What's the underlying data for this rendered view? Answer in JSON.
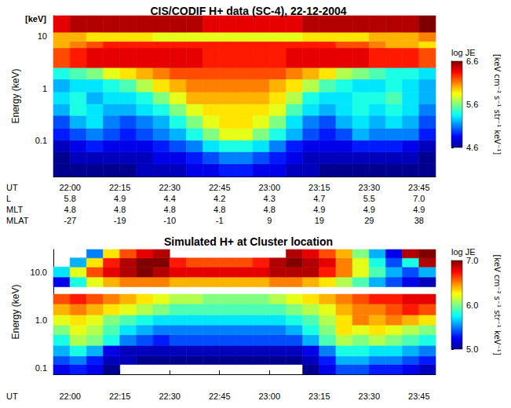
{
  "chart_data": [
    {
      "type": "heatmap",
      "title": "CIS/CODIF H+ data (SC-4), 22-12-2004",
      "ylabel": "Energy (keV)",
      "annotation": "[keV]",
      "xlabel": "UT",
      "log": "y",
      "xlim": [
        1315,
        1430
      ],
      "xticks": [
        {
          "value": 1320,
          "label": "22:00"
        },
        {
          "value": 1335,
          "label": "22:15"
        },
        {
          "value": 1350,
          "label": "22:30"
        },
        {
          "value": 1365,
          "label": "22:45"
        },
        {
          "value": 1380,
          "label": "23:00"
        },
        {
          "value": 1395,
          "label": "23:15"
        },
        {
          "value": 1410,
          "label": "23:30"
        },
        {
          "value": 1425,
          "label": "23:45"
        }
      ],
      "ylim": [
        0.02,
        25
      ],
      "yticks": [
        0.1,
        1,
        10
      ],
      "rows": [
        {
          "label": "L",
          "values": [
            "5.8",
            "4.9",
            "4.4",
            "4.2",
            "4.3",
            "4.7",
            "5.5",
            "7.0"
          ]
        },
        {
          "label": "MLT",
          "values": [
            "4.8",
            "4.8",
            "4.8",
            "4.8",
            "4.8",
            "4.9",
            "4.9",
            "4.9"
          ]
        },
        {
          "label": "MLAT",
          "values": [
            "-27",
            "-19",
            "-10",
            "-1",
            "9",
            "19",
            "29",
            "38"
          ]
        }
      ],
      "x_edges": [
        1315,
        1320,
        1325,
        1330,
        1335,
        1340,
        1345,
        1350,
        1355,
        1360,
        1365,
        1370,
        1375,
        1380,
        1385,
        1390,
        1395,
        1400,
        1405,
        1410,
        1415,
        1420,
        1425,
        1430
      ],
      "y_edges": [
        0.02,
        0.035,
        0.06,
        0.1,
        0.17,
        0.3,
        0.5,
        0.85,
        1.5,
        2.5,
        6,
        8,
        12,
        25
      ],
      "cells": [
        [
          4.6,
          4.6,
          4.6,
          4.6,
          4.6,
          4.7,
          4.7,
          4.7,
          4.8,
          4.8,
          4.9,
          4.9,
          4.8,
          4.8,
          4.7,
          4.7,
          4.6,
          4.6,
          4.6,
          4.6,
          4.6,
          4.6,
          4.6
        ],
        [
          4.6,
          4.7,
          4.7,
          4.7,
          4.7,
          4.7,
          4.8,
          4.8,
          4.9,
          5.0,
          5.1,
          5.1,
          5.0,
          4.9,
          4.8,
          4.7,
          4.7,
          4.7,
          4.7,
          4.7,
          4.7,
          4.7,
          4.6
        ],
        [
          4.7,
          4.8,
          4.9,
          4.8,
          4.8,
          4.8,
          4.9,
          5.0,
          5.1,
          5.3,
          5.4,
          5.4,
          5.3,
          5.1,
          4.9,
          4.8,
          4.8,
          4.8,
          4.9,
          4.9,
          4.9,
          4.8,
          4.7
        ],
        [
          4.9,
          5.0,
          5.1,
          5.0,
          4.9,
          5.0,
          5.1,
          5.2,
          5.4,
          5.6,
          5.8,
          5.8,
          5.6,
          5.4,
          5.2,
          5.0,
          4.9,
          5.0,
          5.2,
          5.1,
          5.1,
          5.1,
          4.9
        ],
        [
          5.0,
          5.2,
          5.3,
          5.1,
          5.0,
          5.1,
          5.2,
          5.4,
          5.6,
          5.8,
          5.9,
          5.9,
          5.8,
          5.6,
          5.3,
          5.1,
          5.0,
          5.2,
          5.3,
          5.2,
          5.3,
          5.2,
          5.0
        ],
        [
          5.2,
          5.4,
          5.3,
          5.2,
          5.2,
          5.3,
          5.4,
          5.6,
          5.8,
          5.9,
          5.9,
          5.9,
          5.9,
          5.8,
          5.5,
          5.3,
          5.2,
          5.3,
          5.4,
          5.3,
          5.4,
          5.3,
          5.1
        ],
        [
          5.3,
          5.4,
          5.2,
          5.3,
          5.3,
          5.4,
          5.6,
          5.8,
          6.0,
          6.0,
          6.0,
          6.0,
          6.0,
          5.9,
          5.7,
          5.4,
          5.3,
          5.3,
          5.4,
          5.4,
          5.5,
          5.3,
          5.2
        ],
        [
          5.2,
          5.3,
          5.3,
          5.4,
          5.5,
          5.7,
          5.9,
          6.0,
          6.1,
          6.1,
          6.1,
          6.1,
          6.1,
          6.0,
          5.9,
          5.7,
          5.5,
          5.4,
          5.3,
          5.3,
          5.4,
          5.3,
          5.2
        ],
        [
          5.4,
          5.5,
          5.6,
          5.8,
          5.9,
          6.0,
          6.1,
          6.2,
          6.2,
          6.2,
          6.2,
          6.2,
          6.2,
          6.2,
          6.1,
          6.0,
          5.9,
          5.7,
          5.6,
          5.5,
          5.4,
          5.4,
          5.3
        ],
        [
          6.2,
          6.3,
          6.4,
          6.4,
          6.4,
          6.4,
          6.4,
          6.4,
          6.4,
          6.3,
          6.3,
          6.3,
          6.3,
          6.3,
          6.4,
          6.4,
          6.4,
          6.4,
          6.4,
          6.3,
          6.3,
          6.3,
          6.2
        ],
        [
          6.0,
          6.1,
          6.2,
          6.3,
          6.3,
          6.3,
          6.3,
          6.3,
          6.3,
          6.3,
          6.3,
          6.3,
          6.3,
          6.3,
          6.3,
          6.3,
          6.3,
          6.2,
          6.2,
          6.1,
          6.0,
          6.0,
          5.9
        ],
        [
          6.0,
          6.0,
          5.9,
          5.9,
          5.9,
          5.9,
          5.8,
          5.8,
          5.8,
          5.8,
          5.8,
          5.8,
          5.8,
          5.8,
          5.8,
          5.9,
          5.9,
          5.9,
          5.9,
          6.0,
          6.0,
          6.0,
          6.1
        ],
        [
          6.4,
          6.5,
          6.5,
          6.5,
          6.5,
          6.5,
          6.5,
          6.5,
          6.5,
          6.4,
          6.4,
          6.4,
          6.4,
          6.4,
          6.4,
          6.5,
          6.5,
          6.5,
          6.5,
          6.5,
          6.5,
          6.5,
          6.6
        ]
      ],
      "colorbar": {
        "title": "log JE",
        "label": "[keV cm⁻² s⁻¹ str⁻¹ keV⁻¹]",
        "range": [
          4.6,
          6.6
        ],
        "ticks": [
          4.6,
          5.6,
          6.6
        ]
      }
    },
    {
      "type": "heatmap",
      "title": "Simulated H+ at Cluster location",
      "ylabel": "Energy (keV)",
      "xlabel": "UT",
      "log": "y",
      "xlim": [
        1315,
        1430
      ],
      "xticks": [
        {
          "value": 1320,
          "label": "22:00"
        },
        {
          "value": 1335,
          "label": "22:15"
        },
        {
          "value": 1350,
          "label": "22:30"
        },
        {
          "value": 1365,
          "label": "22:45"
        },
        {
          "value": 1380,
          "label": "23:00"
        },
        {
          "value": 1395,
          "label": "23:15"
        },
        {
          "value": 1410,
          "label": "23:30"
        },
        {
          "value": 1425,
          "label": "23:45"
        }
      ],
      "ylim": [
        0.075,
        30
      ],
      "yticks": [
        0.1,
        {
          "value": 1,
          "label": "1.0"
        },
        {
          "value": 10,
          "label": "10.0"
        }
      ],
      "x_edges": [
        1315,
        1320,
        1325,
        1330,
        1335,
        1340,
        1345,
        1350,
        1355,
        1360,
        1365,
        1370,
        1375,
        1380,
        1385,
        1390,
        1395,
        1400,
        1405,
        1410,
        1415,
        1420,
        1425,
        1430
      ],
      "y_edges": [
        0.075,
        0.12,
        0.18,
        0.3,
        0.5,
        0.8,
        1.3,
        2.2,
        3.5,
        5,
        8,
        13,
        20,
        30
      ],
      "cells": [
        [
          5.2,
          5.3,
          5.2,
          5.0,
          null,
          null,
          null,
          null,
          null,
          null,
          null,
          null,
          null,
          null,
          null,
          5.0,
          5.2,
          5.4,
          5.4,
          5.3,
          5.3,
          5.2,
          5.1
        ],
        [
          5.4,
          5.5,
          5.3,
          5.1,
          5.1,
          5.0,
          5.0,
          5.0,
          5.0,
          5.0,
          5.0,
          5.0,
          5.0,
          5.0,
          5.0,
          5.1,
          5.3,
          5.6,
          5.6,
          5.5,
          5.5,
          5.4,
          5.3
        ],
        [
          5.6,
          5.8,
          5.6,
          5.2,
          5.1,
          5.1,
          5.1,
          5.1,
          5.1,
          5.1,
          5.1,
          5.1,
          5.1,
          5.1,
          5.1,
          5.2,
          5.5,
          5.8,
          5.8,
          5.7,
          5.7,
          5.6,
          5.5
        ],
        [
          5.8,
          6.1,
          6.0,
          5.8,
          5.5,
          5.4,
          5.3,
          5.4,
          5.4,
          5.4,
          5.4,
          5.4,
          5.4,
          5.4,
          5.4,
          5.6,
          5.9,
          6.1,
          6.0,
          6.1,
          6.0,
          5.9,
          5.8
        ],
        [
          6.0,
          6.2,
          6.1,
          5.9,
          5.7,
          5.6,
          5.5,
          5.5,
          5.5,
          5.5,
          5.5,
          5.5,
          5.5,
          5.5,
          5.6,
          5.8,
          6.0,
          6.3,
          6.2,
          6.3,
          6.2,
          6.1,
          6.0
        ],
        [
          6.2,
          6.3,
          6.2,
          6.0,
          5.9,
          5.8,
          5.7,
          5.7,
          5.7,
          5.7,
          5.7,
          5.7,
          5.7,
          5.7,
          5.8,
          5.9,
          6.1,
          6.3,
          6.5,
          6.4,
          6.5,
          6.4,
          6.3
        ],
        [
          6.4,
          6.5,
          6.4,
          6.3,
          6.2,
          6.1,
          6.0,
          5.9,
          5.9,
          5.9,
          5.9,
          5.9,
          5.9,
          5.9,
          6.0,
          6.1,
          6.2,
          6.4,
          6.5,
          6.5,
          6.6,
          6.7,
          6.6
        ],
        [
          6.6,
          6.7,
          6.6,
          6.5,
          6.4,
          6.3,
          6.2,
          6.1,
          6.1,
          6.0,
          6.0,
          6.0,
          6.0,
          6.1,
          6.2,
          6.3,
          6.4,
          6.5,
          6.6,
          6.7,
          6.7,
          6.8,
          6.8
        ],
        [
          null,
          null,
          null,
          null,
          null,
          null,
          null,
          null,
          null,
          null,
          null,
          null,
          null,
          null,
          null,
          null,
          null,
          null,
          null,
          null,
          null,
          null,
          null
        ],
        [
          5.2,
          5.8,
          6.2,
          6.4,
          6.5,
          6.5,
          6.5,
          6.4,
          6.4,
          6.4,
          6.4,
          6.4,
          6.4,
          6.5,
          6.5,
          6.4,
          6.3,
          6.1,
          5.9,
          5.6,
          5.4,
          5.2,
          5.1
        ],
        [
          5.7,
          6.2,
          6.6,
          6.8,
          6.9,
          7.0,
          6.9,
          6.8,
          6.8,
          6.8,
          6.8,
          6.8,
          6.8,
          6.9,
          6.9,
          6.9,
          6.7,
          6.5,
          6.2,
          5.9,
          5.6,
          5.4,
          5.6
        ],
        [
          null,
          5.6,
          6.3,
          6.7,
          6.9,
          7.0,
          7.0,
          6.7,
          6.6,
          6.6,
          6.6,
          6.6,
          6.7,
          6.9,
          7.0,
          6.9,
          6.8,
          6.5,
          6.2,
          5.8,
          5.4,
          5.8,
          6.9
        ],
        [
          null,
          null,
          5.5,
          6.3,
          6.6,
          6.8,
          6.9,
          null,
          null,
          null,
          null,
          null,
          null,
          null,
          6.9,
          6.8,
          6.6,
          6.4,
          6.0,
          5.6,
          5.2,
          6.9,
          7.0
        ]
      ],
      "colorbar": {
        "title": "log JE",
        "label": "[keV cm⁻² s⁻¹ str⁻¹ keV⁻¹]",
        "range": [
          5.0,
          7.0
        ],
        "ticks": [
          {
            "value": 5,
            "label": "5.0"
          },
          {
            "value": 6,
            "label": "6.0"
          },
          {
            "value": 7,
            "label": "7.0"
          }
        ]
      }
    }
  ]
}
